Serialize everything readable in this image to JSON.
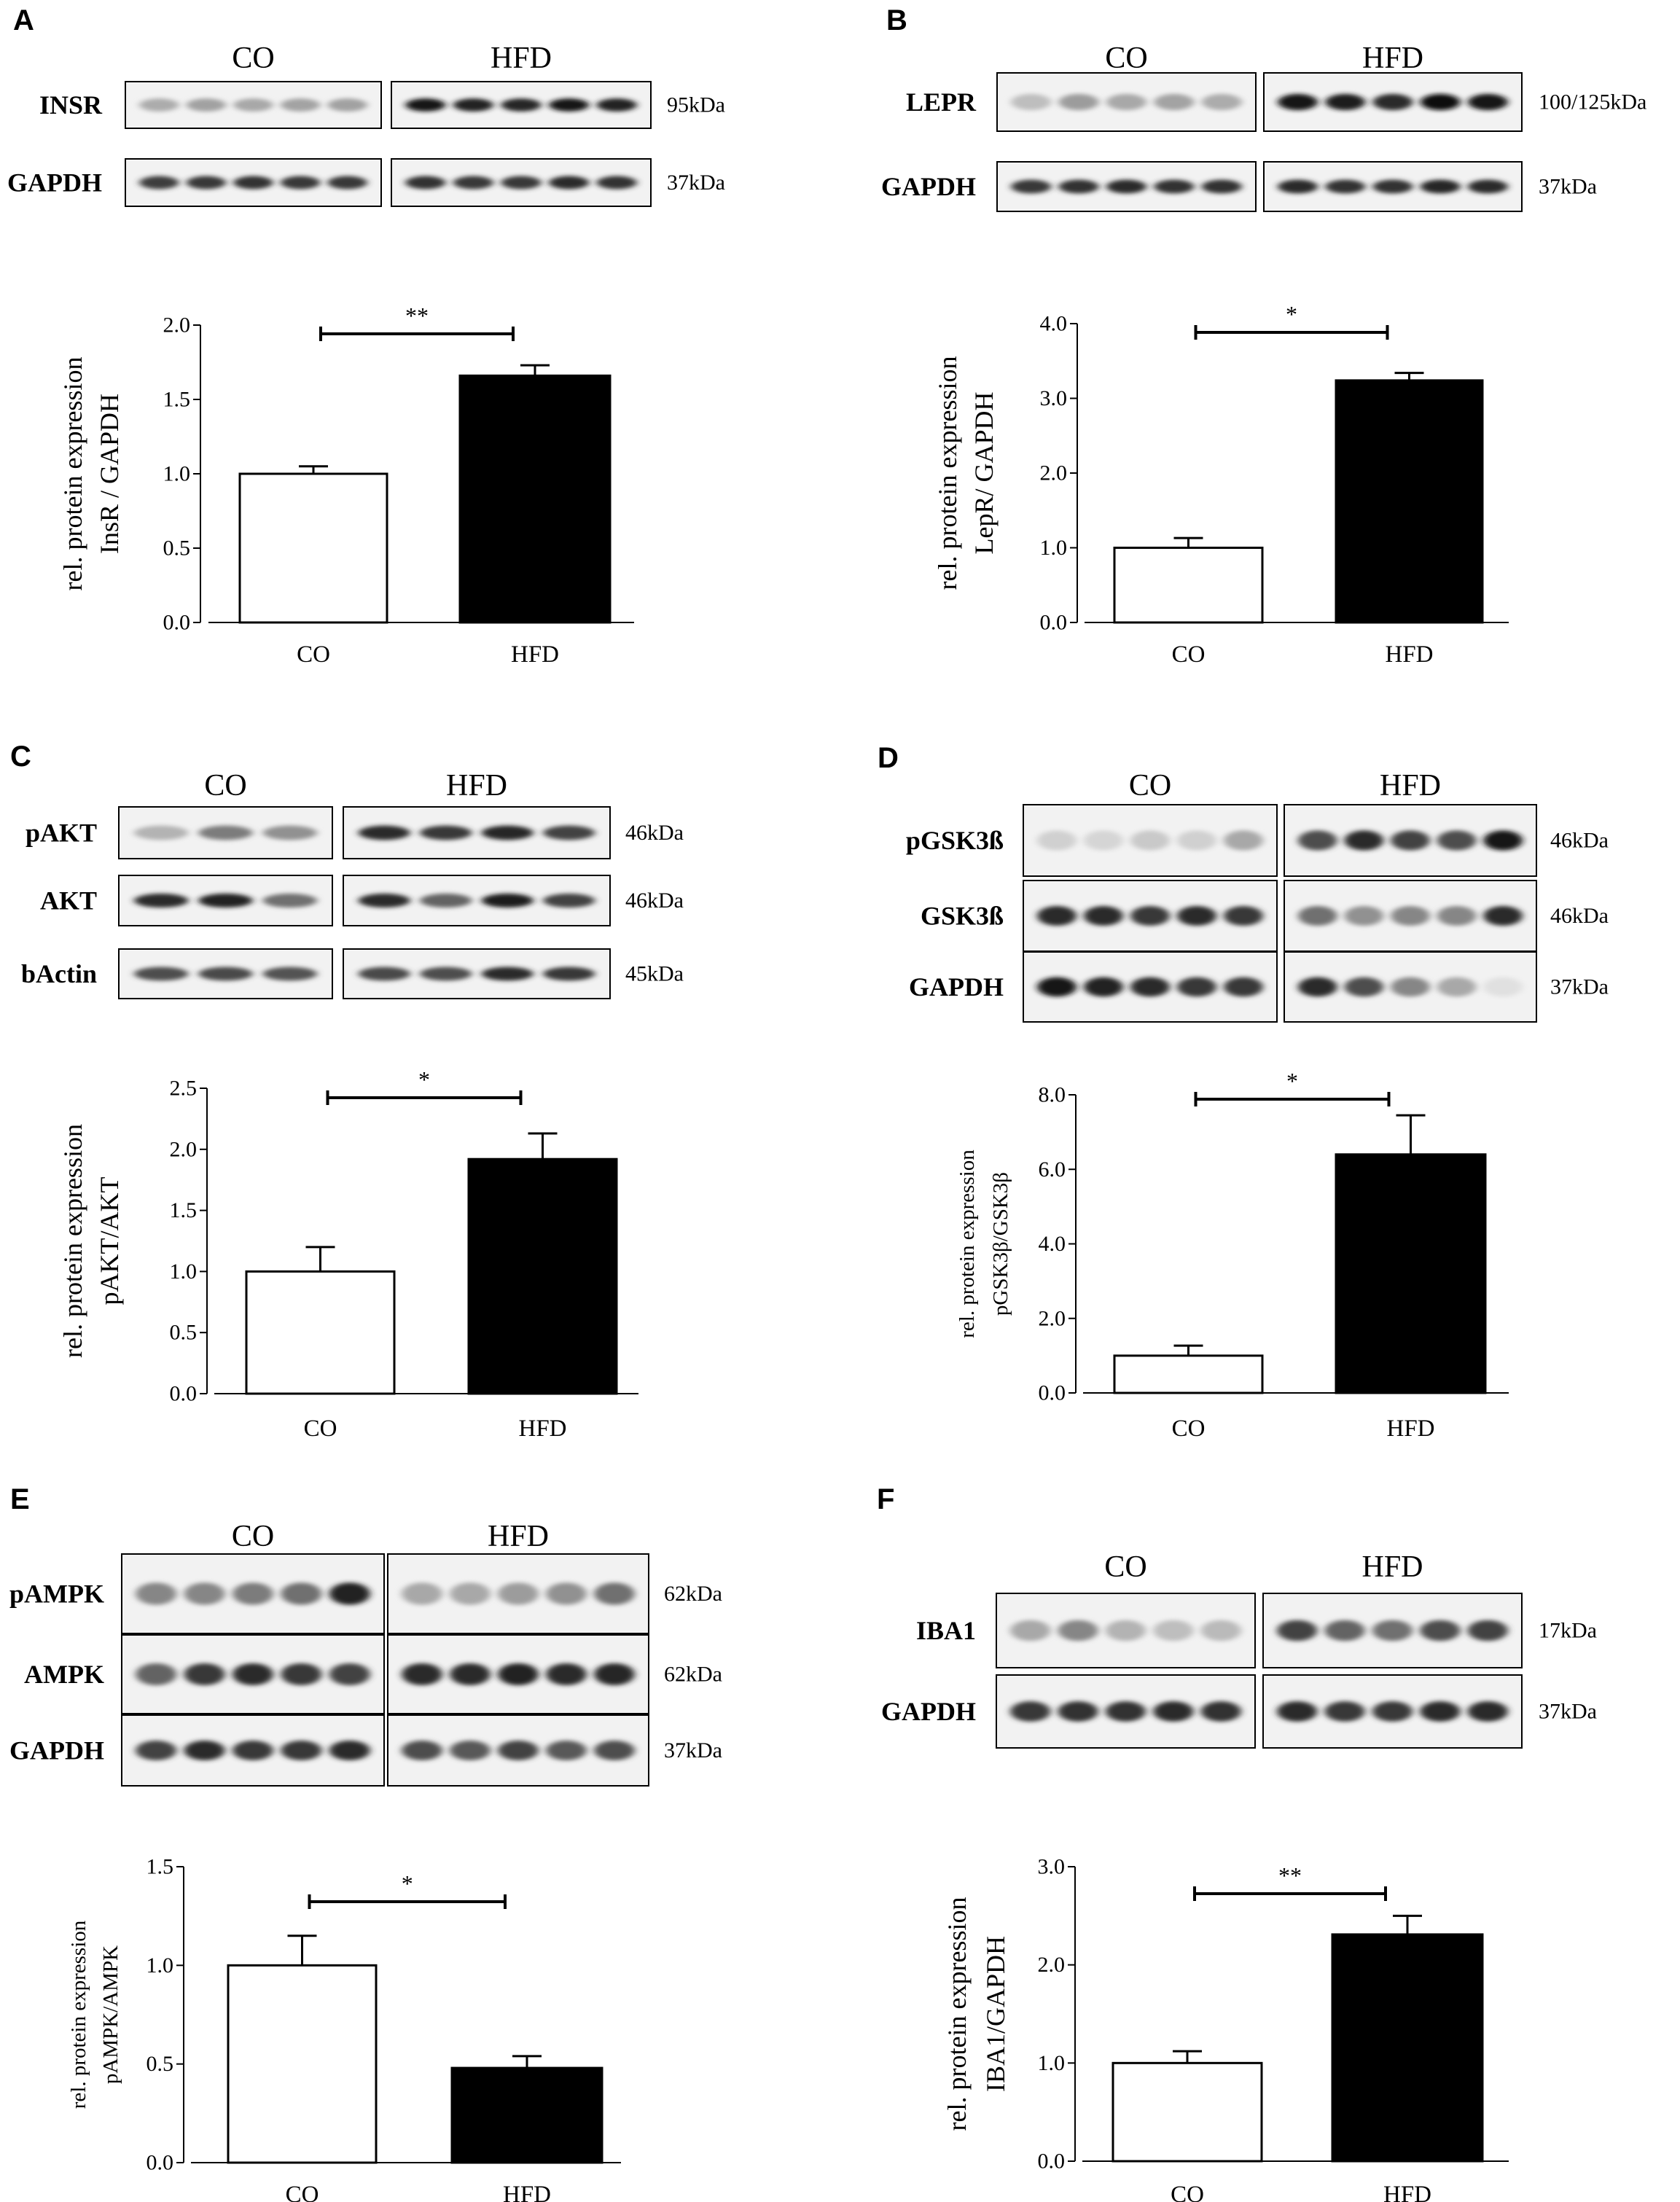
{
  "panels": [
    {
      "letter": "A",
      "blot": {
        "groups": [
          "CO",
          "HFD"
        ],
        "rows": [
          {
            "label": "INSR",
            "kda": "95kDa",
            "co": [
              0.28,
              0.33,
              0.3,
              0.32,
              0.33
            ],
            "hfd": [
              0.95,
              0.9,
              0.88,
              0.95,
              0.9
            ]
          },
          {
            "label": "GAPDH",
            "kda": "37kDa",
            "co": [
              0.78,
              0.8,
              0.82,
              0.8,
              0.8
            ],
            "hfd": [
              0.82,
              0.8,
              0.8,
              0.85,
              0.82
            ]
          }
        ]
      },
      "chart_data": {
        "type": "bar",
        "categories": [
          "CO",
          "HFD"
        ],
        "values": [
          1.0,
          1.66
        ],
        "errors": [
          0.05,
          0.07
        ],
        "ylabel": [
          "rel. protein expression",
          "InsR / GAPDH"
        ],
        "ylim": [
          0,
          2.0
        ],
        "yticks": [
          "0.0",
          "0.5",
          "1.0",
          "1.5",
          "2.0"
        ],
        "bar_colors": [
          "#ffffff",
          "#000000"
        ],
        "significance": "**"
      }
    },
    {
      "letter": "B",
      "blot": {
        "groups": [
          "CO",
          "HFD"
        ],
        "rows": [
          {
            "label": "LEPR",
            "kda": "100/125kDa",
            "co": [
              0.2,
              0.35,
              0.3,
              0.32,
              0.28
            ],
            "hfd": [
              0.95,
              0.92,
              0.85,
              0.98,
              0.95
            ]
          },
          {
            "label": "GAPDH",
            "kda": "37kDa",
            "co": [
              0.8,
              0.82,
              0.85,
              0.82,
              0.82
            ],
            "hfd": [
              0.85,
              0.82,
              0.82,
              0.88,
              0.85
            ]
          }
        ]
      },
      "chart_data": {
        "type": "bar",
        "categories": [
          "CO",
          "HFD"
        ],
        "values": [
          1.0,
          3.24
        ],
        "errors": [
          0.13,
          0.1
        ],
        "ylabel": [
          "rel. protein expression",
          "LepR/ GAPDH"
        ],
        "ylim": [
          0,
          4.0
        ],
        "yticks": [
          "0.0",
          "1.0",
          "2.0",
          "3.0",
          "4.0"
        ],
        "bar_colors": [
          "#ffffff",
          "#000000"
        ],
        "significance": "*"
      }
    },
    {
      "letter": "C",
      "blot": {
        "groups": [
          "CO",
          "HFD"
        ],
        "rows": [
          {
            "label": "pAKT",
            "kda": "46kDa",
            "co": [
              0.25,
              0.5,
              0.4
            ],
            "hfd": [
              0.85,
              0.8,
              0.88,
              0.75
            ]
          },
          {
            "label": "AKT",
            "kda": "46kDa",
            "co": [
              0.85,
              0.9,
              0.55
            ],
            "hfd": [
              0.85,
              0.6,
              0.92,
              0.75
            ]
          },
          {
            "label": "bActin",
            "kda": "45kDa",
            "co": [
              0.7,
              0.72,
              0.68
            ],
            "hfd": [
              0.72,
              0.7,
              0.85,
              0.8
            ]
          }
        ]
      },
      "chart_data": {
        "type": "bar",
        "categories": [
          "CO",
          "HFD"
        ],
        "values": [
          1.0,
          1.92
        ],
        "errors": [
          0.2,
          0.21
        ],
        "ylabel": [
          "rel. protein expression",
          "pAKT/AKT"
        ],
        "ylim": [
          0,
          2.5
        ],
        "yticks": [
          "0.0",
          "0.5",
          "1.0",
          "1.5",
          "2.0",
          "2.5"
        ],
        "bar_colors": [
          "#ffffff",
          "#000000"
        ],
        "significance": "*"
      }
    },
    {
      "letter": "D",
      "blot": {
        "groups": [
          "CO",
          "HFD"
        ],
        "rows": [
          {
            "label": "pGSK3ß",
            "kda": "46kDa",
            "co": [
              0.12,
              0.1,
              0.15,
              0.12,
              0.3
            ],
            "hfd": [
              0.7,
              0.85,
              0.75,
              0.7,
              0.95
            ]
          },
          {
            "label": "GSK3ß",
            "kda": "46kDa",
            "co": [
              0.85,
              0.85,
              0.8,
              0.85,
              0.8
            ],
            "hfd": [
              0.55,
              0.4,
              0.45,
              0.45,
              0.85
            ]
          },
          {
            "label": "GAPDH",
            "kda": "37kDa",
            "co": [
              0.95,
              0.9,
              0.85,
              0.8,
              0.8
            ],
            "hfd": [
              0.85,
              0.7,
              0.45,
              0.3,
              0.05
            ]
          }
        ]
      },
      "chart_data": {
        "type": "bar",
        "categories": [
          "CO",
          "HFD"
        ],
        "values": [
          1.0,
          6.4
        ],
        "errors": [
          0.27,
          1.05
        ],
        "ylabel": [
          "rel. protein expression",
          "pGSK3β/GSK3β"
        ],
        "ylim": [
          0,
          8.0
        ],
        "yticks": [
          "0.0",
          "2.0",
          "4.0",
          "6.0",
          "8.0"
        ],
        "bar_colors": [
          "#ffffff",
          "#000000"
        ],
        "significance": "*"
      }
    },
    {
      "letter": "E",
      "blot": {
        "groups": [
          "CO",
          "HFD"
        ],
        "rows": [
          {
            "label": "pAMPK",
            "kda": "62kDa",
            "co": [
              0.45,
              0.45,
              0.5,
              0.55,
              0.9
            ],
            "hfd": [
              0.3,
              0.3,
              0.35,
              0.4,
              0.55
            ]
          },
          {
            "label": "AMPK",
            "kda": "62kDa",
            "co": [
              0.6,
              0.8,
              0.85,
              0.8,
              0.75
            ],
            "hfd": [
              0.85,
              0.85,
              0.9,
              0.85,
              0.88
            ]
          },
          {
            "label": "GAPDH",
            "kda": "37kDa",
            "co": [
              0.75,
              0.85,
              0.8,
              0.8,
              0.85
            ],
            "hfd": [
              0.7,
              0.65,
              0.75,
              0.65,
              0.7
            ]
          }
        ]
      },
      "chart_data": {
        "type": "bar",
        "categories": [
          "CO",
          "HFD"
        ],
        "values": [
          1.0,
          0.48
        ],
        "errors": [
          0.15,
          0.06
        ],
        "ylabel": [
          "rel. protein expression",
          "pAMPK/AMPK"
        ],
        "ylim": [
          0,
          1.5
        ],
        "yticks": [
          "0.0",
          "0.5",
          "1.0",
          "1.5"
        ],
        "bar_colors": [
          "#ffffff",
          "#000000"
        ],
        "significance": "*"
      }
    },
    {
      "letter": "F",
      "blot": {
        "groups": [
          "CO",
          "HFD"
        ],
        "rows": [
          {
            "label": "IBA1",
            "kda": "17kDa",
            "co": [
              0.3,
              0.45,
              0.25,
              0.2,
              0.22
            ],
            "hfd": [
              0.75,
              0.6,
              0.55,
              0.7,
              0.75
            ]
          },
          {
            "label": "GAPDH",
            "kda": "37kDa",
            "co": [
              0.8,
              0.82,
              0.82,
              0.85,
              0.82
            ],
            "hfd": [
              0.85,
              0.8,
              0.8,
              0.85,
              0.85
            ]
          }
        ]
      },
      "chart_data": {
        "type": "bar",
        "categories": [
          "CO",
          "HFD"
        ],
        "values": [
          1.0,
          2.31
        ],
        "errors": [
          0.12,
          0.19
        ],
        "ylabel": [
          "rel. protein expression",
          "IBA1/GAPDH"
        ],
        "ylim": [
          0,
          3.0
        ],
        "yticks": [
          "0.0",
          "1.0",
          "2.0",
          "3.0"
        ],
        "bar_colors": [
          "#ffffff",
          "#000000"
        ],
        "significance": "**"
      }
    }
  ]
}
